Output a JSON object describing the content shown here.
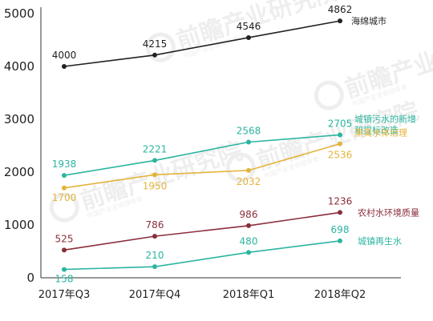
{
  "watermark": {
    "text": "前瞻产业研究院",
    "subtext": "中国产业咨询领导者"
  },
  "chart_data": {
    "type": "line",
    "title": "",
    "xlabel": "",
    "ylabel": "",
    "categories": [
      "2017年Q3",
      "2017年Q4",
      "2018年Q1",
      "2018年Q2"
    ],
    "ylim": [
      0,
      5000
    ],
    "yticks": [
      0,
      1000,
      2000,
      3000,
      4000,
      5000
    ],
    "grid": false,
    "legend": "series labels at right end of each line",
    "series": [
      {
        "name": "海绵城市",
        "color": "#222222",
        "values": [
          4000,
          4215,
          4546,
          4862
        ]
      },
      {
        "name": "城镇污水的新增和提标改造",
        "color": "#2bb5a0",
        "values": [
          1938,
          2221,
          2568,
          2705
        ]
      },
      {
        "name": "黑臭水体治理",
        "color": "#e3b43a",
        "values": [
          1700,
          1950,
          2032,
          2536
        ]
      },
      {
        "name": "农村水环境质量",
        "color": "#8a2e3a",
        "values": [
          525,
          786,
          986,
          1236
        ]
      },
      {
        "name": "城镇再生水",
        "color": "#2bb5a0",
        "values": [
          158,
          210,
          480,
          698
        ]
      }
    ]
  }
}
